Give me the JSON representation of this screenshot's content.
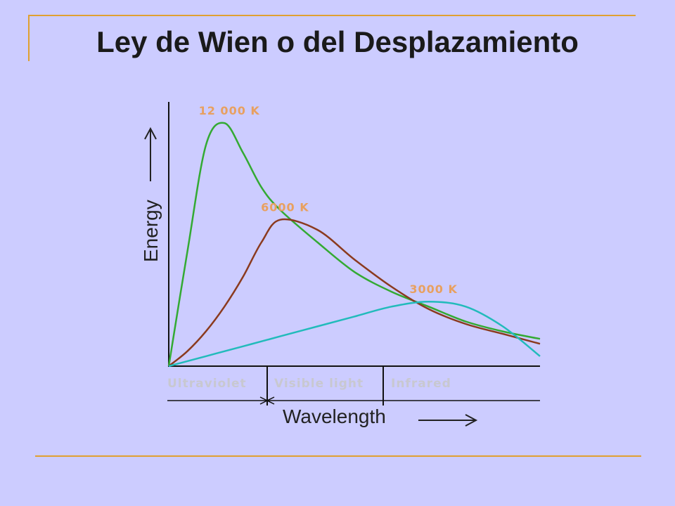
{
  "title": "Ley de Wien o del Desplazamiento",
  "colors": {
    "background": "#ccccff",
    "accent_line": "#e0a030",
    "series_12000": "#33aa33",
    "series_6000": "#8b3a1e",
    "series_3000": "#22bbbb",
    "series_label": "#e8a060"
  },
  "chart_data": {
    "type": "line",
    "title": "",
    "xlabel": "Wavelength",
    "ylabel": "Energy",
    "regions": [
      "Ultraviolet",
      "Visible light",
      "Infrared"
    ],
    "x": [
      0,
      0.05,
      0.1,
      0.15,
      0.2,
      0.25,
      0.3,
      0.4,
      0.5,
      0.6,
      0.7,
      0.8,
      0.9,
      1.0
    ],
    "xlim": [
      0,
      1
    ],
    "ylim": [
      0,
      1
    ],
    "grid": false,
    "series": [
      {
        "name": "12 000 K",
        "values": [
          0,
          0.46,
          0.89,
          0.98,
          0.86,
          0.72,
          0.63,
          0.5,
          0.38,
          0.3,
          0.24,
          0.18,
          0.14,
          0.11
        ]
      },
      {
        "name": "6000 K",
        "values": [
          0,
          0.06,
          0.14,
          0.24,
          0.36,
          0.5,
          0.59,
          0.55,
          0.43,
          0.32,
          0.23,
          0.17,
          0.13,
          0.09
        ]
      },
      {
        "name": "3000 K",
        "values": [
          0,
          0.02,
          0.04,
          0.06,
          0.08,
          0.1,
          0.12,
          0.16,
          0.2,
          0.24,
          0.26,
          0.24,
          0.16,
          0.04
        ]
      }
    ]
  }
}
